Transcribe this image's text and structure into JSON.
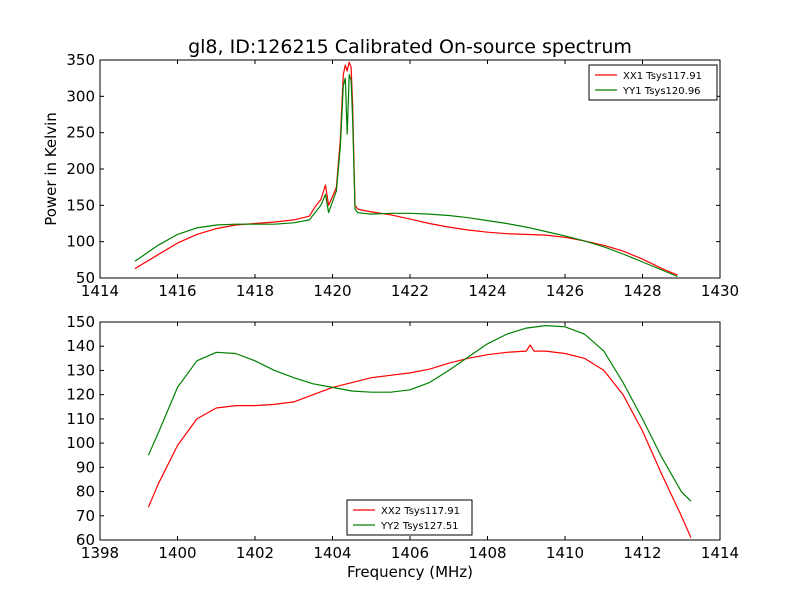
{
  "title": "gl8, ID:126215 Calibrated On-source spectrum",
  "colors": {
    "red": "#ff0000",
    "green": "#008000"
  },
  "chart_data": [
    {
      "type": "line",
      "title": "gl8, ID:126215 Calibrated On-source spectrum",
      "xlabel": "",
      "ylabel": "Power in Kelvin",
      "xlim": [
        1414,
        1430
      ],
      "ylim": [
        50,
        350
      ],
      "xticks": [
        1414,
        1416,
        1418,
        1420,
        1422,
        1424,
        1426,
        1428,
        1430
      ],
      "yticks": [
        50,
        100,
        150,
        200,
        250,
        300,
        350
      ],
      "grid": false,
      "legend_position": "upper right",
      "series": [
        {
          "name": "XX1 Tsys117.91",
          "color": "#ff0000",
          "x": [
            1414.9,
            1415.5,
            1416.0,
            1416.5,
            1417.0,
            1417.5,
            1418.0,
            1418.5,
            1419.0,
            1419.4,
            1419.55,
            1419.7,
            1419.82,
            1419.9,
            1420.0,
            1420.1,
            1420.2,
            1420.28,
            1420.33,
            1420.38,
            1420.43,
            1420.48,
            1420.52,
            1420.58,
            1420.65,
            1420.8,
            1421.0,
            1421.5,
            1422.0,
            1422.5,
            1423.0,
            1423.5,
            1424.0,
            1424.5,
            1425.0,
            1425.5,
            1426.0,
            1426.5,
            1427.0,
            1427.5,
            1428.0,
            1428.5,
            1428.9
          ],
          "y": [
            63,
            82,
            98,
            110,
            118,
            123,
            125,
            127,
            130,
            135,
            148,
            158,
            178,
            150,
            162,
            175,
            240,
            330,
            343,
            335,
            347,
            340,
            290,
            150,
            145,
            143,
            141,
            137,
            131,
            125,
            120,
            116,
            113,
            111,
            110,
            109,
            106,
            101,
            95,
            87,
            76,
            63,
            54
          ]
        },
        {
          "name": "YY1 Tsys120.96",
          "color": "#008000",
          "x": [
            1414.9,
            1415.5,
            1416.0,
            1416.5,
            1417.0,
            1417.5,
            1418.0,
            1418.5,
            1419.0,
            1419.4,
            1419.55,
            1419.7,
            1419.82,
            1419.9,
            1420.0,
            1420.1,
            1420.2,
            1420.28,
            1420.33,
            1420.38,
            1420.43,
            1420.48,
            1420.52,
            1420.58,
            1420.65,
            1420.8,
            1421.0,
            1421.5,
            1422.0,
            1422.5,
            1423.0,
            1423.5,
            1424.0,
            1424.5,
            1425.0,
            1425.5,
            1426.0,
            1426.5,
            1427.0,
            1427.5,
            1428.0,
            1428.5,
            1428.9
          ],
          "y": [
            73,
            95,
            110,
            119,
            123,
            124,
            124,
            124,
            126,
            130,
            140,
            150,
            165,
            140,
            155,
            170,
            230,
            315,
            325,
            248,
            330,
            322,
            270,
            145,
            140,
            139,
            138,
            139,
            139,
            138,
            136,
            133,
            129,
            125,
            120,
            114,
            108,
            101,
            93,
            83,
            72,
            61,
            52
          ]
        }
      ]
    },
    {
      "type": "line",
      "title": "",
      "xlabel": "Frequency (MHz)",
      "ylabel": "",
      "xlim": [
        1398,
        1414
      ],
      "ylim": [
        60,
        150
      ],
      "xticks": [
        1398,
        1400,
        1402,
        1404,
        1406,
        1408,
        1410,
        1412,
        1414
      ],
      "yticks": [
        60,
        70,
        80,
        90,
        100,
        110,
        120,
        130,
        140,
        150
      ],
      "grid": false,
      "legend_position": "lower center",
      "series": [
        {
          "name": "XX2 Tsys117.91",
          "color": "#ff0000",
          "x": [
            1399.25,
            1399.5,
            1400.0,
            1400.5,
            1401.0,
            1401.5,
            1402.0,
            1402.5,
            1403.0,
            1403.5,
            1404.0,
            1404.5,
            1405.0,
            1405.5,
            1406.0,
            1406.5,
            1407.0,
            1407.5,
            1408.0,
            1408.5,
            1409.0,
            1409.1,
            1409.2,
            1409.5,
            1410.0,
            1410.5,
            1411.0,
            1411.5,
            1412.0,
            1412.5,
            1413.0,
            1413.25
          ],
          "y": [
            73.5,
            83,
            99,
            110,
            114.5,
            115.5,
            115.5,
            116,
            117,
            120,
            123,
            125,
            127,
            128,
            129,
            130.5,
            133,
            135,
            136.5,
            137.5,
            138,
            140.5,
            138,
            138,
            137,
            135,
            130,
            120,
            105,
            87,
            70,
            61
          ]
        },
        {
          "name": "YY2 Tsys127.51",
          "color": "#008000",
          "x": [
            1399.25,
            1399.5,
            1400.0,
            1400.5,
            1401.0,
            1401.5,
            1402.0,
            1402.5,
            1403.0,
            1403.5,
            1404.0,
            1404.5,
            1405.0,
            1405.5,
            1406.0,
            1406.5,
            1407.0,
            1407.5,
            1408.0,
            1408.5,
            1409.0,
            1409.5,
            1410.0,
            1410.5,
            1411.0,
            1411.5,
            1412.0,
            1412.5,
            1413.0,
            1413.25
          ],
          "y": [
            95,
            104,
            123,
            134,
            137.5,
            137,
            134,
            130,
            127,
            124.5,
            123,
            121.5,
            121,
            121,
            122,
            125,
            130,
            135.5,
            141,
            145,
            147.5,
            148.5,
            148,
            145,
            138,
            125,
            110,
            94,
            80,
            76
          ]
        }
      ]
    }
  ]
}
